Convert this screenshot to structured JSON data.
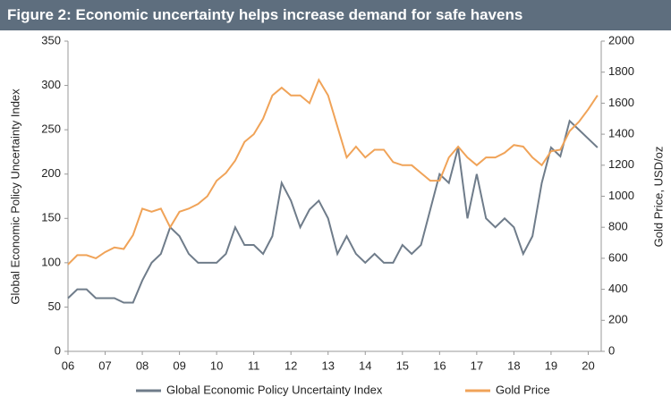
{
  "chart_data": {
    "type": "line",
    "title": "Figure 2: Economic uncertainty helps increase demand for safe havens",
    "y_label": "Global Economic Policy Uncertainty Index",
    "y2_label": "Gold Price, USD/oz",
    "x": [
      2006,
      2006.25,
      2006.5,
      2006.75,
      2007,
      2007.25,
      2007.5,
      2007.75,
      2008,
      2008.25,
      2008.5,
      2008.75,
      2009,
      2009.25,
      2009.5,
      2009.75,
      2010,
      2010.25,
      2010.5,
      2010.75,
      2011,
      2011.25,
      2011.5,
      2011.75,
      2012,
      2012.25,
      2012.5,
      2012.75,
      2013,
      2013.25,
      2013.5,
      2013.75,
      2014,
      2014.25,
      2014.5,
      2014.75,
      2015,
      2015.25,
      2015.5,
      2015.75,
      2016,
      2016.25,
      2016.5,
      2016.75,
      2017,
      2017.25,
      2017.5,
      2017.75,
      2018,
      2018.25,
      2018.5,
      2018.75,
      2019,
      2019.25,
      2019.5,
      2019.75,
      2020,
      2020.25
    ],
    "series": [
      {
        "name": "Global Economic Policy Uncertainty Index",
        "color": "#6f7c8a",
        "values": [
          60,
          70,
          70,
          60,
          60,
          60,
          55,
          55,
          80,
          100,
          110,
          140,
          130,
          110,
          100,
          100,
          100,
          110,
          140,
          120,
          120,
          110,
          130,
          190,
          170,
          140,
          160,
          170,
          150,
          110,
          130,
          110,
          100,
          110,
          100,
          100,
          120,
          110,
          120,
          160,
          200,
          190,
          230,
          150,
          200,
          150,
          140,
          150,
          140,
          110,
          130,
          190,
          230,
          220,
          260,
          250,
          240,
          230
        ]
      },
      {
        "name": "Gold Price",
        "color": "#f0a358",
        "axis": "y2",
        "values": [
          560,
          620,
          620,
          600,
          640,
          670,
          660,
          750,
          920,
          900,
          920,
          800,
          900,
          920,
          950,
          1000,
          1100,
          1150,
          1230,
          1350,
          1400,
          1500,
          1650,
          1700,
          1650,
          1650,
          1600,
          1750,
          1650,
          1450,
          1250,
          1320,
          1250,
          1300,
          1300,
          1220,
          1200,
          1200,
          1150,
          1100,
          1100,
          1250,
          1320,
          1250,
          1200,
          1250,
          1250,
          1280,
          1330,
          1320,
          1250,
          1200,
          1290,
          1300,
          1420,
          1480,
          1560,
          1650
        ]
      }
    ],
    "xlim": [
      2006,
      2020.35
    ],
    "xticks": [
      {
        "value": 2006,
        "label": "06"
      },
      {
        "value": 2007,
        "label": "07"
      },
      {
        "value": 2008,
        "label": "08"
      },
      {
        "value": 2009,
        "label": "09"
      },
      {
        "value": 2010,
        "label": "10"
      },
      {
        "value": 2011,
        "label": "11"
      },
      {
        "value": 2012,
        "label": "12"
      },
      {
        "value": 2013,
        "label": "13"
      },
      {
        "value": 2014,
        "label": "14"
      },
      {
        "value": 2015,
        "label": "15"
      },
      {
        "value": 2016,
        "label": "16"
      },
      {
        "value": 2017,
        "label": "17"
      },
      {
        "value": 2018,
        "label": "18"
      },
      {
        "value": 2019,
        "label": "19"
      },
      {
        "value": 2020,
        "label": "20"
      }
    ],
    "ylim": [
      0,
      350
    ],
    "yticks": [
      0,
      50,
      100,
      150,
      200,
      250,
      300,
      350
    ],
    "y2lim": [
      0,
      2000
    ],
    "y2ticks": [
      0,
      200,
      400,
      600,
      800,
      1000,
      1200,
      1400,
      1600,
      1800,
      2000
    ],
    "grid": false,
    "legend": "bottom"
  }
}
